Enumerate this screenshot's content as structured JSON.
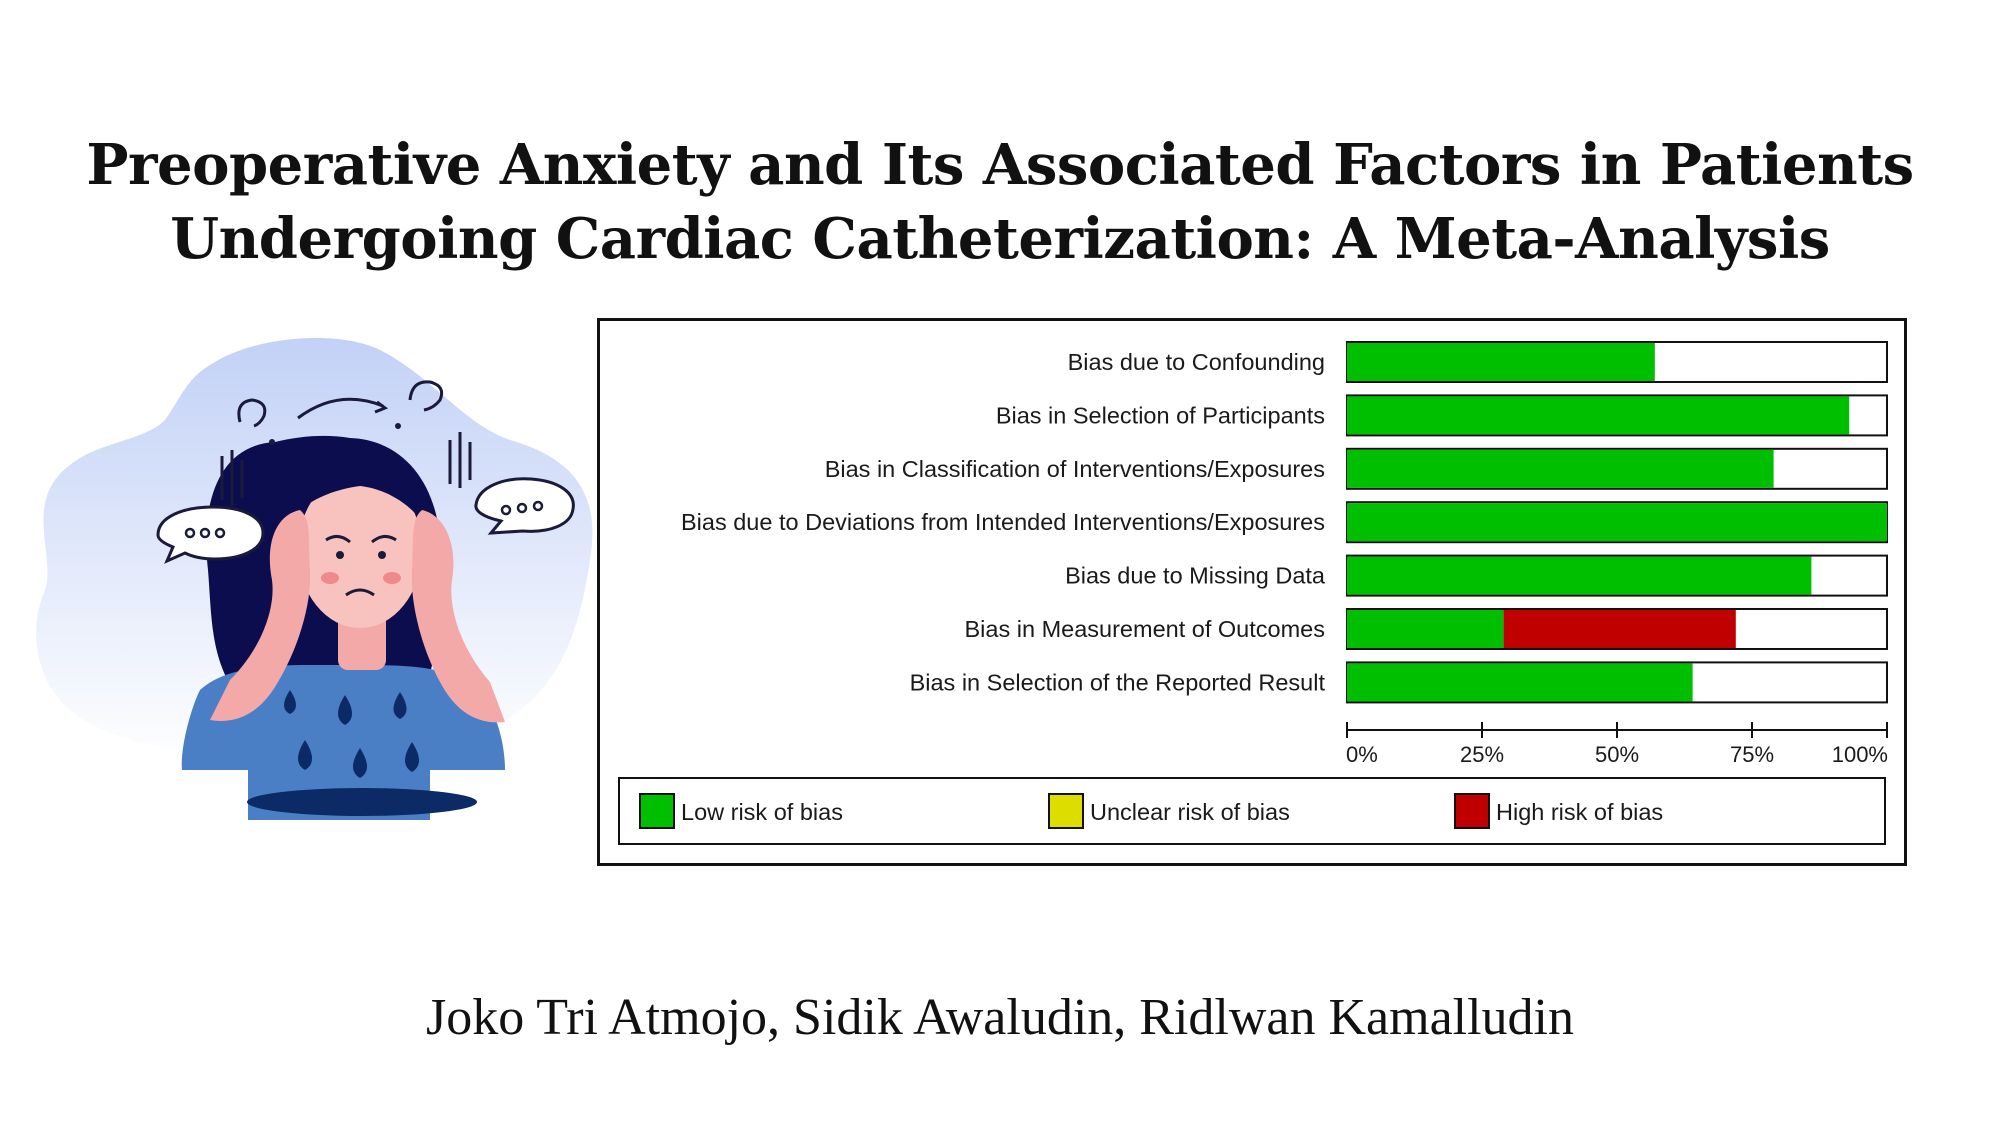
{
  "title": {
    "line1": "Preoperative Anxiety and Its Associated Factors in Patients",
    "line2": "Undergoing Cardiac Catheterization: A Meta-Analysis"
  },
  "authors": "Joko Tri Atmojo, Sidik Awaludin, Ridlwan Kamalludin",
  "chart_data": {
    "type": "bar",
    "orientation": "horizontal",
    "stacked": true,
    "categories": [
      "Bias due to Confounding",
      "Bias in Selection of Participants",
      "Bias in Classification of Interventions/Exposures",
      "Bias due to Deviations from Intended Interventions/Exposures",
      "Bias due to Missing Data",
      "Bias in Measurement of Outcomes",
      "Bias in Selection of the Reported Result"
    ],
    "series": [
      {
        "name": "Low risk of bias",
        "color": "#00bf00",
        "values": [
          57,
          93,
          79,
          100,
          86,
          29,
          64
        ]
      },
      {
        "name": "Unclear risk of bias",
        "color": "#dddd00",
        "values": [
          0,
          0,
          0,
          0,
          0,
          0,
          0
        ]
      },
      {
        "name": "High risk of bias",
        "color": "#c00000",
        "values": [
          0,
          0,
          0,
          0,
          0,
          43,
          0
        ]
      }
    ],
    "xlim": [
      0,
      100
    ],
    "xticks": [
      "0%",
      "25%",
      "50%",
      "75%",
      "100%"
    ],
    "legend": [
      "Low risk of bias",
      "Unclear risk of bias",
      "High risk of bias"
    ],
    "legend_position": "bottom"
  }
}
